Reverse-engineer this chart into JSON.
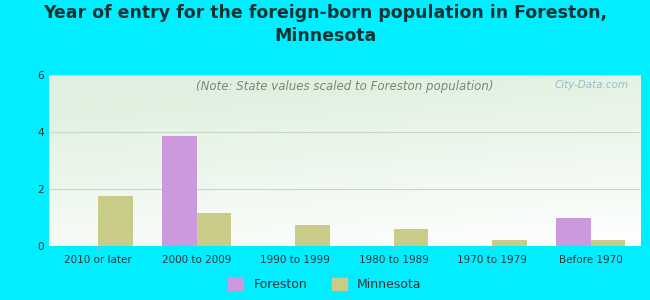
{
  "title": "Year of entry for the foreign-born population in Foreston,\nMinnesota",
  "subtitle": "(Note: State values scaled to Foreston population)",
  "categories": [
    "2010 or later",
    "2000 to 2009",
    "1990 to 1999",
    "1980 to 1989",
    "1970 to 1979",
    "Before 1970"
  ],
  "foreston_values": [
    0,
    3.85,
    0,
    0,
    0,
    1.0
  ],
  "minnesota_values": [
    1.75,
    1.15,
    0.75,
    0.6,
    0.2,
    0.22
  ],
  "foreston_color": "#cc99dd",
  "minnesota_color": "#c8cc88",
  "ylim": [
    0,
    6
  ],
  "yticks": [
    0,
    2,
    4,
    6
  ],
  "bg_outer": "#00eeff",
  "bar_width": 0.35,
  "title_fontsize": 12.5,
  "subtitle_fontsize": 8.5,
  "tick_fontsize": 7.5,
  "legend_fontsize": 9,
  "watermark_text": "City-Data.com",
  "watermark_color": "#99bbcc",
  "grid_color": "#c8d8c8"
}
